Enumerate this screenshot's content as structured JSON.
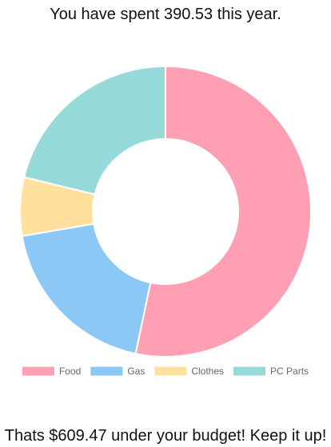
{
  "heading": "You have spent 390.53 this year.",
  "footer": "Thats $609.47 under your budget! Keep it up!",
  "chart_data": {
    "type": "doughnut",
    "categories": [
      "Food",
      "Gas",
      "Clothes",
      "PC Parts"
    ],
    "values": [
      53.3,
      19.0,
      6.5,
      21.2
    ],
    "colors": [
      "#ff9fb3",
      "#8cc8f5",
      "#ffe09c",
      "#95d9d9"
    ],
    "legend": "bottom"
  }
}
